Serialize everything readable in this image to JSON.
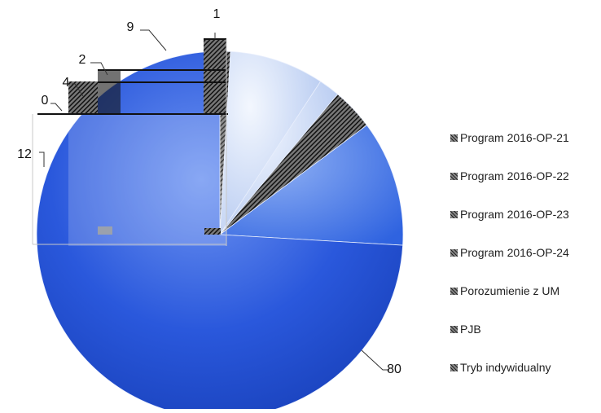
{
  "chart_data": {
    "type": "pie",
    "title": "",
    "series": [
      {
        "values": [
          1,
          9,
          2,
          4,
          0,
          12,
          80
        ],
        "categories": [
          "Program 2016-OP-21",
          "Program 2016-OP-22",
          "Program 2016-OP-23",
          "Program 2016-OP-24",
          "Porozumienie z UM",
          "PJB",
          "Tryb indywidualny"
        ]
      }
    ],
    "labels": [
      "1",
      "9",
      "2",
      "4",
      "0",
      "12",
      "80"
    ],
    "legend": {
      "position": "right",
      "entries": [
        "Program 2016-OP-21",
        "Program 2016-OP-22",
        "Program 2016-OP-23",
        "Program 2016-OP-24",
        "Porozumienie z UM",
        "PJB",
        "Tryb indywidualny"
      ]
    },
    "colors": {
      "main_slice": "#1f4fd6",
      "light_slice": "#c9d8f5",
      "pattern_dark": "#1a1a1a"
    }
  }
}
